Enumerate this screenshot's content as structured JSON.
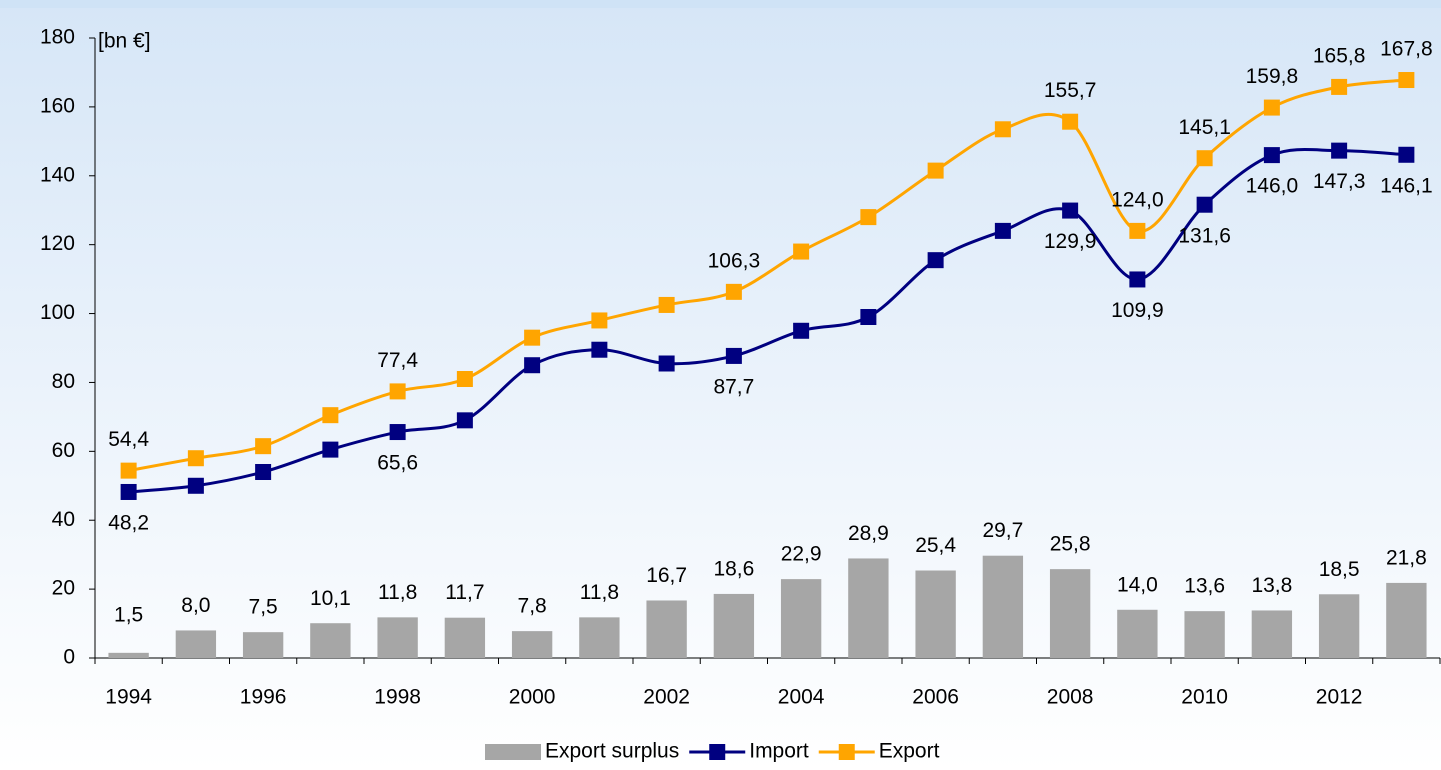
{
  "chart_data": {
    "type": "combo",
    "y_label": "[bn €]",
    "categories": [
      "1994",
      null,
      "1996",
      null,
      "1998",
      null,
      "2000",
      null,
      "2002",
      null,
      "2004",
      null,
      "2006",
      null,
      "2008",
      null,
      "2010",
      null,
      "2012",
      null
    ],
    "ylim": [
      0,
      180
    ],
    "yticks": [
      0,
      20,
      40,
      60,
      80,
      100,
      120,
      140,
      160,
      180
    ],
    "legend": "bottom",
    "series": [
      {
        "name": "Export surplus",
        "type": "bar",
        "color": "#a6a6a6",
        "values": [
          1.5,
          8.0,
          7.5,
          10.1,
          11.8,
          11.7,
          7.8,
          11.8,
          16.7,
          18.6,
          22.9,
          28.9,
          25.4,
          29.7,
          25.8,
          14.0,
          13.6,
          13.8,
          18.5,
          21.8
        ],
        "value_labels": [
          "1,5",
          "8,0",
          "7,5",
          "10,1",
          "11,8",
          "11,7",
          "7,8",
          "11,8",
          "16,7",
          "18,6",
          "22,9",
          "28,9",
          "25,4",
          "29,7",
          "25,8",
          "14,0",
          "13,6",
          "13,8",
          "18,5",
          "21,8"
        ]
      },
      {
        "name": "Import",
        "type": "line",
        "color": "#000080",
        "values": [
          48.2,
          50,
          54,
          60.5,
          65.6,
          69,
          85,
          89.5,
          85.5,
          87.7,
          95,
          99,
          115.5,
          124,
          129.9,
          109.9,
          131.6,
          146.0,
          147.3,
          146.1
        ],
        "value_labels": [
          "48,2",
          null,
          null,
          null,
          "65,6",
          null,
          null,
          null,
          null,
          "87,7",
          null,
          null,
          null,
          null,
          "129,9",
          "109,9",
          "131,6",
          "146,0",
          "147,3",
          "146,1"
        ]
      },
      {
        "name": "Export",
        "type": "line",
        "color": "#ffa500",
        "values": [
          54.4,
          58,
          61.5,
          70.5,
          77.4,
          81,
          93,
          98,
          102.5,
          106.3,
          118,
          128,
          141.5,
          153.5,
          155.7,
          124.0,
          145.1,
          159.8,
          165.8,
          167.8
        ],
        "value_labels": [
          "54,4",
          null,
          null,
          null,
          "77,4",
          null,
          null,
          null,
          null,
          "106,3",
          null,
          null,
          null,
          null,
          "155,7",
          "124,0",
          "145,1",
          "159,8",
          "165,8",
          "167,8"
        ]
      }
    ]
  }
}
